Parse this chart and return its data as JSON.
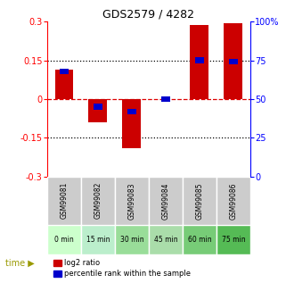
{
  "title": "GDS2579 / 4282",
  "samples": [
    "GSM99081",
    "GSM99082",
    "GSM99083",
    "GSM99084",
    "GSM99085",
    "GSM99086"
  ],
  "time_labels": [
    "0 min",
    "15 min",
    "30 min",
    "45 min",
    "60 min",
    "75 min"
  ],
  "time_colors": [
    "#ccffcc",
    "#bbeecc",
    "#99dd99",
    "#aaddaa",
    "#77cc77",
    "#55bb55"
  ],
  "log2_ratios": [
    0.115,
    -0.09,
    -0.19,
    0.0,
    0.285,
    0.295
  ],
  "percentile_ranks": [
    68,
    45,
    42,
    50,
    75,
    74
  ],
  "bar_color_red": "#cc0000",
  "bar_color_blue": "#0000cc",
  "ylim_left": [
    -0.3,
    0.3
  ],
  "ylim_right": [
    0,
    100
  ],
  "yticks_left": [
    -0.3,
    -0.15,
    0,
    0.15,
    0.3
  ],
  "yticks_right": [
    0,
    25,
    50,
    75,
    100
  ],
  "hline_zero_color": "#dd0000",
  "bg_color": "#ffffff",
  "bar_width": 0.55,
  "blue_bar_width": 0.25,
  "blue_bar_height": 0.022
}
